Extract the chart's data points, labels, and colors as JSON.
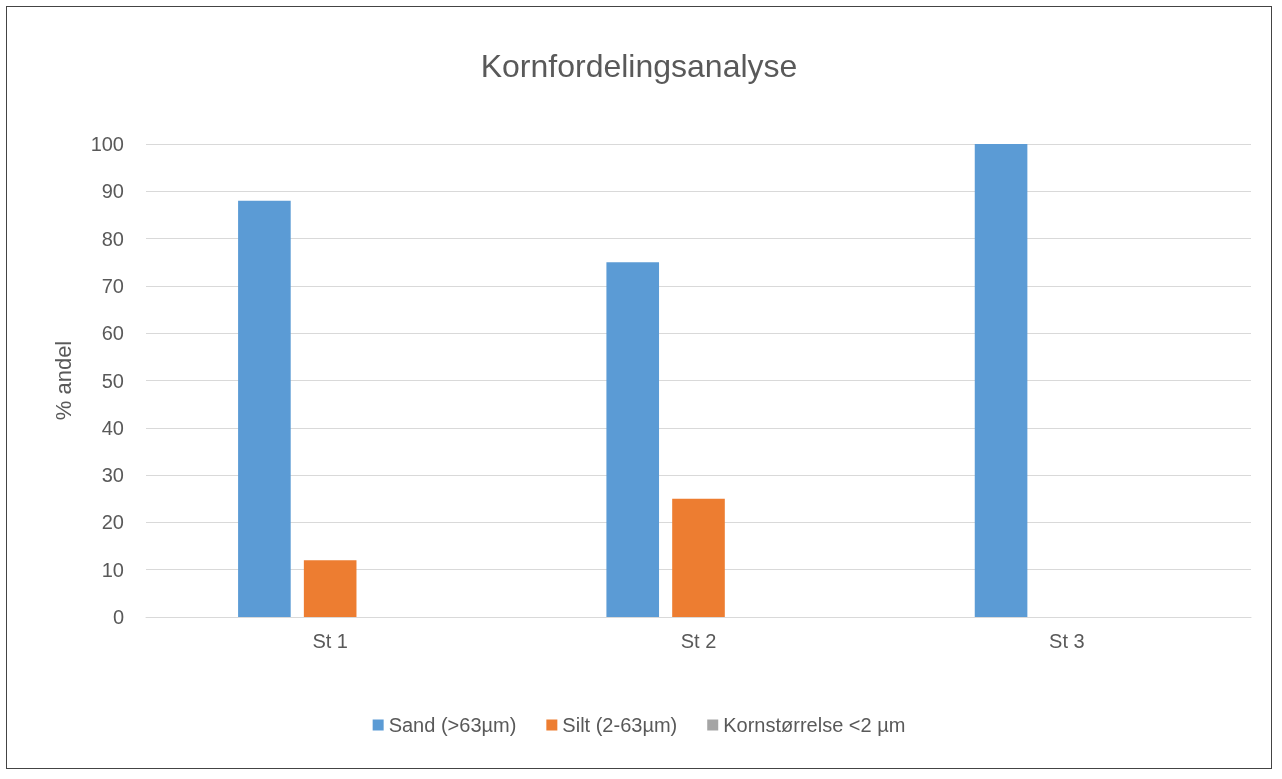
{
  "chart_data": {
    "type": "bar",
    "title": "Kornfordelingsanalyse",
    "ylabel": "% andel",
    "categories": [
      "St 1",
      "St 2",
      "St 3"
    ],
    "series": [
      {
        "name": "Sand (>63µm)",
        "color": "#5b9bd5",
        "values": [
          88,
          75,
          100
        ]
      },
      {
        "name": "Silt (2-63µm)",
        "color": "#ed7d31",
        "values": [
          12,
          25,
          0
        ]
      },
      {
        "name": "Kornstørrelse <2 µm",
        "color": "#a5a5a5",
        "values": [
          0,
          0,
          0
        ]
      }
    ],
    "ylim": [
      0,
      100
    ],
    "yticks": [
      0,
      10,
      20,
      30,
      40,
      50,
      60,
      70,
      80,
      90,
      100
    ],
    "grid": "y",
    "legend": "bottom"
  }
}
